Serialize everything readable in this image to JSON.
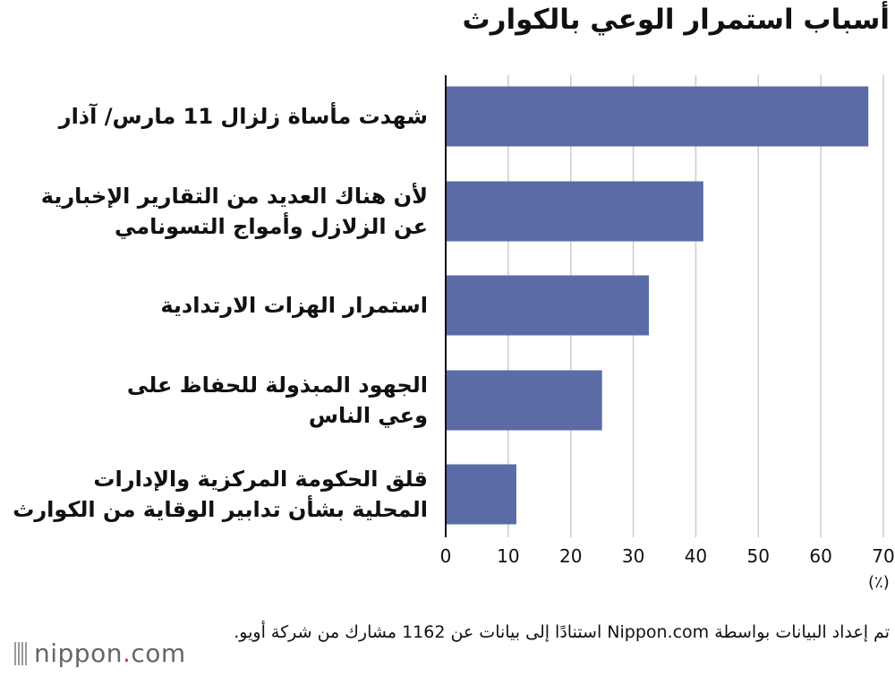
{
  "title": "أسباب استمرار الوعي بالكوارث",
  "unit_label": "(٪)",
  "source_note": "تم إعداد البيانات بواسطة Nippon.com استنادًا إلى بيانات عن 1162 مشارك من شركة أويو.",
  "brand": {
    "name": "nippon",
    "dot": ".",
    "suffix": "com"
  },
  "colors": {
    "bar": "#5a6ba6",
    "grid": "#cccccc",
    "axis": "#111111"
  },
  "chart_data": {
    "type": "bar",
    "orientation": "horizontal",
    "title": "أسباب استمرار الوعي بالكوارث",
    "categories": [
      [
        "شهدت مأساة زلزال 11 مارس/ آذار"
      ],
      [
        "لأن هناك العديد من التقارير الإخبارية",
        "عن الزلازل وأمواج التسونامي"
      ],
      [
        "استمرار الهزات الارتدادية"
      ],
      [
        "الجهود المبذولة للحفاظ على",
        "وعي الناس"
      ],
      [
        "قلق الحكومة المركزية والإدارات",
        "المحلية بشأن تدابير الوقاية من الكوارث"
      ]
    ],
    "values": [
      67.6,
      41.2,
      32.5,
      25.0,
      11.3
    ],
    "xlim": [
      0,
      70
    ],
    "xticks": [
      "0",
      "10",
      "20",
      "30",
      "40",
      "50",
      "60",
      "70"
    ],
    "xlabel": "(٪)",
    "grid": true
  }
}
